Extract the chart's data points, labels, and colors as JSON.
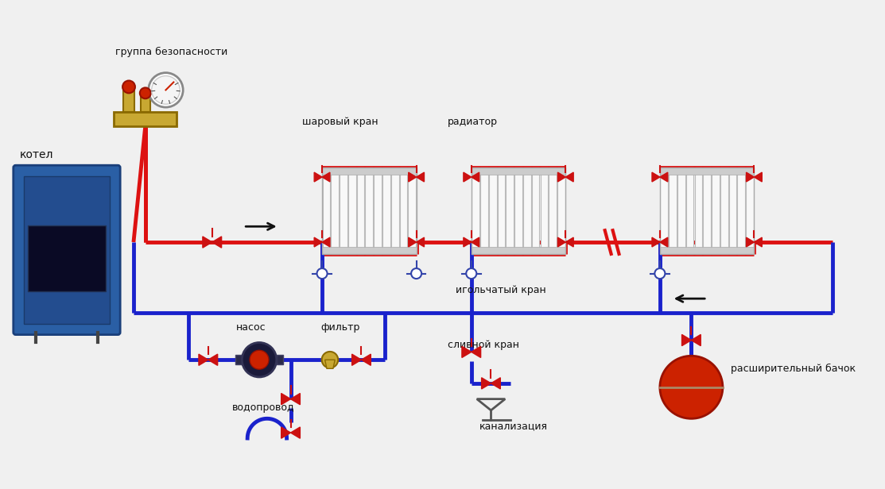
{
  "bg_color": "#f0f0f0",
  "pipe_red": "#dd1111",
  "pipe_blue": "#1a22cc",
  "pipe_lw": 3.5,
  "text_color": "#111111",
  "labels": {
    "group_safety": "группа безопасности",
    "boiler": "котел",
    "ball_valve": "шаровый кран",
    "radiator": "радиатор",
    "needle_valve": "игольчатый кран",
    "pump": "насос",
    "filter": "фильтр",
    "water_supply": "водопровод",
    "drain_valve": "сливной кран",
    "sewage": "канализация",
    "expansion_tank": "расширительный бачок"
  },
  "font_size": 9,
  "fig_width": 11.13,
  "fig_height": 6.16,
  "dpi": 100,
  "red_valve": "#cc1111",
  "gold": "#c8a832",
  "boiler_blue": "#2a5fa5"
}
